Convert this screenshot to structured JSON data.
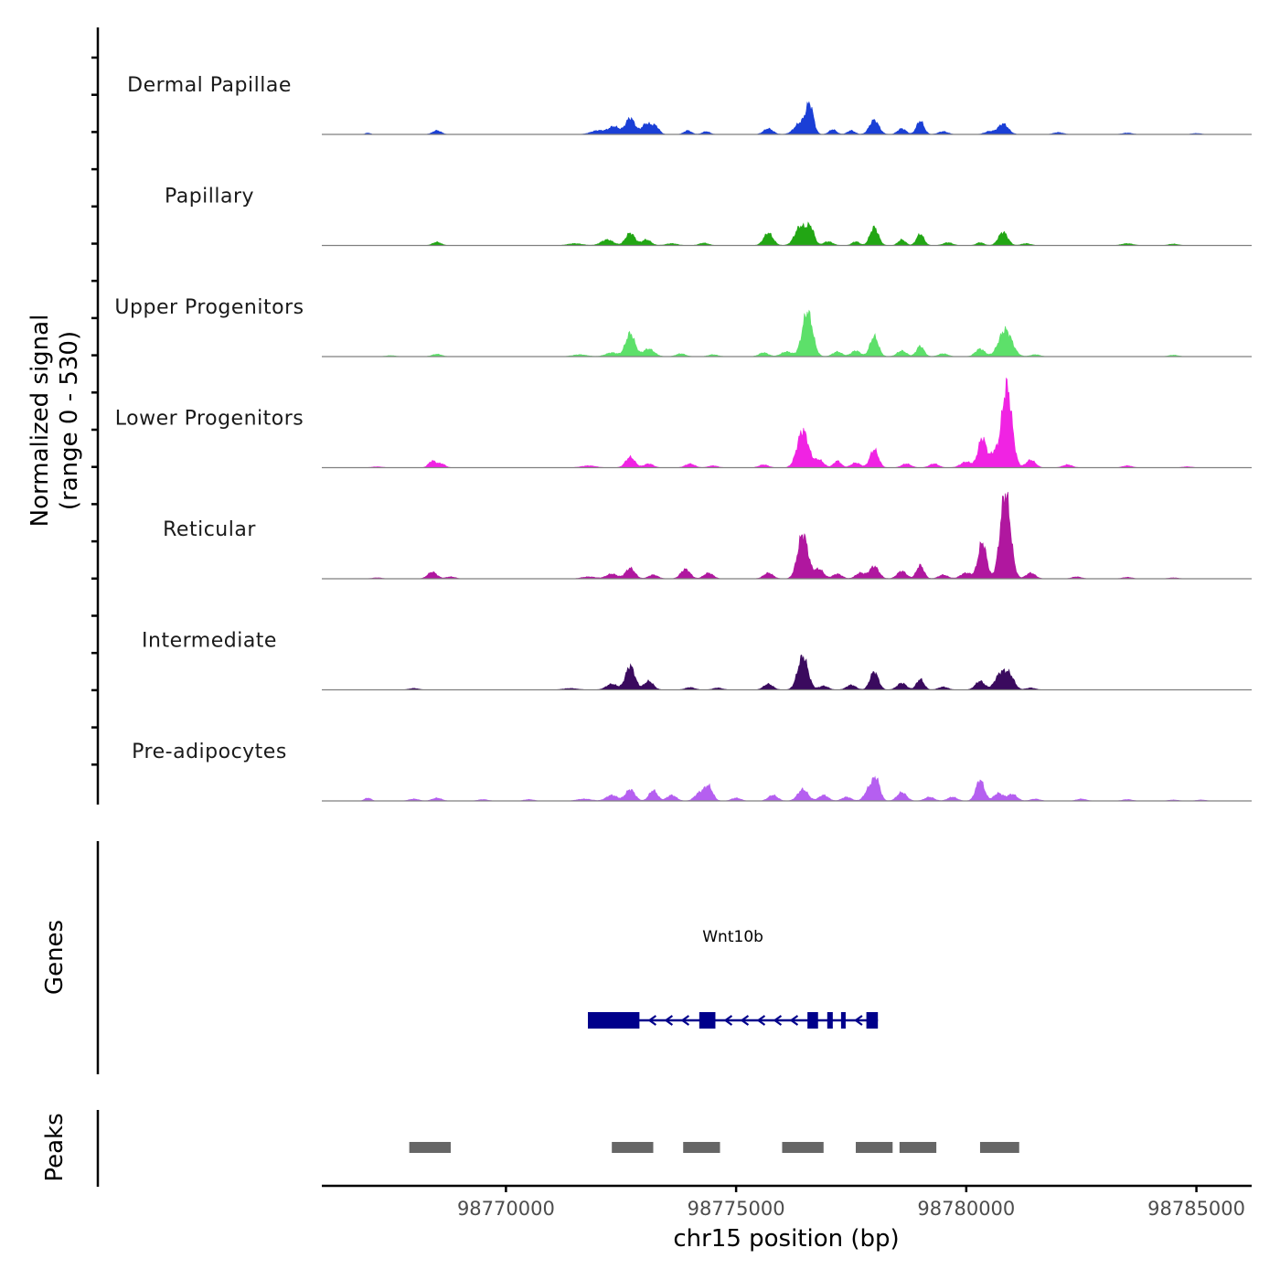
{
  "chart_data": {
    "type": "area",
    "title": "",
    "chromosome": "chr15",
    "xlabel": "chr15 position (bp)",
    "xlim": [
      98766000,
      98786200
    ],
    "xticks": [
      98770000,
      98775000,
      98780000,
      98785000
    ],
    "xtick_labels": [
      "98770000",
      "98775000",
      "98780000",
      "98785000"
    ],
    "signal_ylabel": [
      "Normalized signal",
      "(range 0 - 530)"
    ],
    "signal_range": [
      0,
      530
    ],
    "tracks": [
      {
        "name": "Dermal Papillae",
        "color": "#1a3fd6",
        "peaks": [
          [
            98767000,
            15,
            50
          ],
          [
            98768500,
            40,
            90
          ],
          [
            98772000,
            40,
            150
          ],
          [
            98772350,
            80,
            120
          ],
          [
            98772700,
            170,
            100
          ],
          [
            98773050,
            110,
            100
          ],
          [
            98773250,
            80,
            80
          ],
          [
            98773950,
            40,
            80
          ],
          [
            98774350,
            30,
            80
          ],
          [
            98775700,
            60,
            100
          ],
          [
            98776400,
            120,
            130
          ],
          [
            98776600,
            290,
            80
          ],
          [
            98777100,
            50,
            80
          ],
          [
            98777500,
            40,
            80
          ],
          [
            98778000,
            150,
            100
          ],
          [
            98778600,
            60,
            90
          ],
          [
            98779000,
            140,
            80
          ],
          [
            98779500,
            30,
            100
          ],
          [
            98780500,
            30,
            100
          ],
          [
            98780800,
            110,
            110
          ],
          [
            98782000,
            20,
            100
          ],
          [
            98783500,
            15,
            100
          ],
          [
            98785000,
            10,
            100
          ]
        ]
      },
      {
        "name": "Papillary",
        "color": "#22a614",
        "peaks": [
          [
            98768500,
            35,
            90
          ],
          [
            98771500,
            20,
            150
          ],
          [
            98772200,
            60,
            130
          ],
          [
            98772700,
            130,
            100
          ],
          [
            98773050,
            60,
            100
          ],
          [
            98773600,
            20,
            120
          ],
          [
            98774300,
            25,
            100
          ],
          [
            98775700,
            130,
            100
          ],
          [
            98776400,
            200,
            120
          ],
          [
            98776620,
            170,
            80
          ],
          [
            98777000,
            40,
            100
          ],
          [
            98777600,
            40,
            80
          ],
          [
            98778000,
            190,
            90
          ],
          [
            98778600,
            60,
            80
          ],
          [
            98779000,
            120,
            80
          ],
          [
            98779600,
            30,
            100
          ],
          [
            98780300,
            30,
            80
          ],
          [
            98780800,
            140,
            100
          ],
          [
            98781300,
            20,
            100
          ],
          [
            98783500,
            20,
            120
          ],
          [
            98784500,
            15,
            100
          ]
        ]
      },
      {
        "name": "Upper Progenitors",
        "color": "#5de06a",
        "peaks": [
          [
            98767500,
            10,
            100
          ],
          [
            98768500,
            25,
            100
          ],
          [
            98771600,
            20,
            150
          ],
          [
            98772300,
            40,
            130
          ],
          [
            98772700,
            240,
            100
          ],
          [
            98773100,
            80,
            120
          ],
          [
            98773800,
            30,
            100
          ],
          [
            98774500,
            20,
            100
          ],
          [
            98775600,
            40,
            100
          ],
          [
            98776100,
            50,
            120
          ],
          [
            98776550,
            470,
            110
          ],
          [
            98777200,
            50,
            100
          ],
          [
            98777600,
            60,
            100
          ],
          [
            98778000,
            210,
            90
          ],
          [
            98778600,
            60,
            100
          ],
          [
            98779000,
            110,
            80
          ],
          [
            98779500,
            30,
            100
          ],
          [
            98780300,
            80,
            100
          ],
          [
            98780850,
            280,
            140
          ],
          [
            98781500,
            20,
            100
          ],
          [
            98784500,
            15,
            100
          ]
        ]
      },
      {
        "name": "Lower Progenitors",
        "color": "#f023e3",
        "peaks": [
          [
            98767200,
            10,
            100
          ],
          [
            98768400,
            70,
            80
          ],
          [
            98768600,
            40,
            80
          ],
          [
            98771800,
            20,
            150
          ],
          [
            98772700,
            110,
            100
          ],
          [
            98773100,
            40,
            100
          ],
          [
            98774000,
            40,
            100
          ],
          [
            98774500,
            20,
            100
          ],
          [
            98775600,
            30,
            100
          ],
          [
            98776450,
            390,
            120
          ],
          [
            98776800,
            80,
            100
          ],
          [
            98777200,
            70,
            80
          ],
          [
            98777600,
            50,
            100
          ],
          [
            98778000,
            190,
            90
          ],
          [
            98778700,
            40,
            100
          ],
          [
            98779300,
            40,
            100
          ],
          [
            98780000,
            60,
            120
          ],
          [
            98780350,
            310,
            90
          ],
          [
            98780600,
            140,
            80
          ],
          [
            98780880,
            850,
            110
          ],
          [
            98781400,
            80,
            100
          ],
          [
            98782200,
            30,
            100
          ],
          [
            98783500,
            20,
            100
          ],
          [
            98784800,
            10,
            100
          ]
        ]
      },
      {
        "name": "Reticular",
        "color": "#b0179f",
        "peaks": [
          [
            98767200,
            10,
            100
          ],
          [
            98768400,
            70,
            100
          ],
          [
            98768800,
            20,
            100
          ],
          [
            98771800,
            20,
            150
          ],
          [
            98772300,
            50,
            120
          ],
          [
            98772700,
            110,
            100
          ],
          [
            98773200,
            40,
            100
          ],
          [
            98773900,
            100,
            100
          ],
          [
            98774400,
            60,
            100
          ],
          [
            98775700,
            60,
            100
          ],
          [
            98776450,
            470,
            110
          ],
          [
            98776800,
            100,
            100
          ],
          [
            98777200,
            50,
            100
          ],
          [
            98777700,
            60,
            100
          ],
          [
            98778000,
            130,
            100
          ],
          [
            98778600,
            80,
            100
          ],
          [
            98779000,
            140,
            80
          ],
          [
            98779500,
            40,
            100
          ],
          [
            98780000,
            60,
            120
          ],
          [
            98780350,
            380,
            90
          ],
          [
            98780850,
            900,
            110
          ],
          [
            98781400,
            60,
            100
          ],
          [
            98782400,
            20,
            100
          ],
          [
            98783500,
            15,
            100
          ],
          [
            98784500,
            10,
            100
          ]
        ]
      },
      {
        "name": "Intermediate",
        "color": "#3a0a5e",
        "peaks": [
          [
            98768000,
            15,
            100
          ],
          [
            98771400,
            15,
            150
          ],
          [
            98772300,
            60,
            120
          ],
          [
            98772700,
            250,
            100
          ],
          [
            98773100,
            90,
            100
          ],
          [
            98774000,
            25,
            100
          ],
          [
            98774600,
            20,
            100
          ],
          [
            98775700,
            60,
            100
          ],
          [
            98776450,
            350,
            110
          ],
          [
            98776900,
            40,
            100
          ],
          [
            98777500,
            50,
            100
          ],
          [
            98778000,
            190,
            90
          ],
          [
            98778600,
            70,
            100
          ],
          [
            98779000,
            110,
            80
          ],
          [
            98779500,
            30,
            100
          ],
          [
            98780300,
            90,
            100
          ],
          [
            98780750,
            170,
            120
          ],
          [
            98780950,
            130,
            100
          ],
          [
            98781400,
            20,
            100
          ]
        ]
      },
      {
        "name": "Pre-adipocytes",
        "color": "#b55ff0",
        "peaks": [
          [
            98767000,
            30,
            70
          ],
          [
            98768000,
            20,
            100
          ],
          [
            98768500,
            30,
            100
          ],
          [
            98769500,
            15,
            100
          ],
          [
            98770500,
            15,
            100
          ],
          [
            98771700,
            20,
            150
          ],
          [
            98772300,
            60,
            120
          ],
          [
            98772700,
            120,
            100
          ],
          [
            98773200,
            110,
            90
          ],
          [
            98773600,
            60,
            100
          ],
          [
            98774200,
            80,
            100
          ],
          [
            98774400,
            150,
            90
          ],
          [
            98775000,
            30,
            100
          ],
          [
            98775800,
            60,
            100
          ],
          [
            98776450,
            120,
            110
          ],
          [
            98776900,
            60,
            100
          ],
          [
            98777400,
            40,
            100
          ],
          [
            98777900,
            130,
            100
          ],
          [
            98778050,
            200,
            80
          ],
          [
            98778600,
            90,
            100
          ],
          [
            98779200,
            40,
            100
          ],
          [
            98779700,
            40,
            100
          ],
          [
            98780300,
            220,
            90
          ],
          [
            98780700,
            80,
            100
          ],
          [
            98781000,
            70,
            100
          ],
          [
            98781500,
            20,
            100
          ],
          [
            98782500,
            20,
            100
          ],
          [
            98783500,
            15,
            100
          ],
          [
            98784500,
            10,
            100
          ],
          [
            98785100,
            10,
            100
          ]
        ]
      }
    ],
    "genes": [
      {
        "name": "Wnt10b",
        "strand": "-",
        "start": 98771780,
        "end": 98778080,
        "exons": [
          [
            98771780,
            98772900
          ],
          [
            98774200,
            98774550
          ],
          [
            98776550,
            98776780
          ],
          [
            98776980,
            98777100
          ],
          [
            98777280,
            98777380
          ],
          [
            98777830,
            98778080
          ]
        ]
      }
    ],
    "genes_label": "Genes",
    "peaks_label": "Peaks",
    "peak_regions": [
      [
        98767900,
        98768800
      ],
      [
        98772300,
        98773200
      ],
      [
        98773850,
        98774650
      ],
      [
        98776000,
        98776900
      ],
      [
        98777600,
        98778400
      ],
      [
        98778550,
        98779350
      ],
      [
        98780300,
        98781150
      ]
    ]
  },
  "colors": {
    "gene": "#00008b",
    "peak_region": "#666666",
    "axis": "#000000",
    "baseline": "#7f7f7f"
  }
}
